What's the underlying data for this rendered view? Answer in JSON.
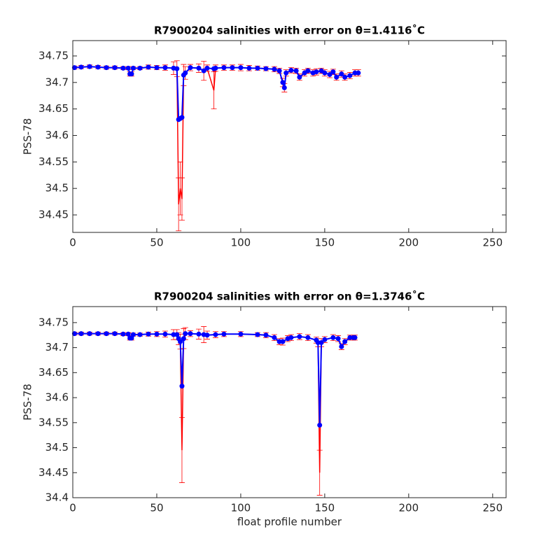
{
  "chart_data": [
    {
      "type": "line",
      "title": "R7900204 salinities with error on θ=1.4116˚C",
      "y_label": "PSS-78",
      "x": [
        1,
        5,
        10,
        15,
        20,
        25,
        30,
        33,
        34,
        35,
        36,
        40,
        45,
        50,
        55,
        60,
        62,
        63,
        64,
        65,
        66,
        67,
        70,
        75,
        78,
        80,
        84,
        85,
        90,
        95,
        100,
        105,
        110,
        115,
        120,
        123,
        125,
        126,
        127,
        130,
        133,
        135,
        138,
        140,
        143,
        145,
        148,
        150,
        153,
        155,
        157,
        160,
        162,
        165,
        168,
        170
      ],
      "series": [
        {
          "color": "#ff0000",
          "values": [
            34.728,
            34.729,
            34.73,
            34.729,
            34.728,
            34.728,
            34.727,
            34.727,
            34.716,
            34.716,
            34.727,
            34.727,
            34.729,
            34.728,
            34.728,
            34.727,
            34.726,
            34.47,
            34.5,
            34.48,
            34.714,
            34.718,
            34.728,
            34.727,
            34.722,
            34.727,
            34.685,
            34.727,
            34.728,
            34.728,
            34.728,
            34.727,
            34.727,
            34.726,
            34.725,
            34.722,
            34.7,
            34.69,
            34.718,
            34.723,
            34.722,
            34.71,
            34.718,
            34.722,
            34.718,
            34.72,
            34.722,
            34.718,
            34.715,
            34.72,
            34.71,
            34.716,
            34.71,
            34.713,
            34.718,
            34.718
          ],
          "errors": [
            0.003,
            0.003,
            0.003,
            0.003,
            0.003,
            0.003,
            0.003,
            0.003,
            0.004,
            0.004,
            0.003,
            0.003,
            0.004,
            0.004,
            0.005,
            0.012,
            0.015,
            0.05,
            0.05,
            0.04,
            0.02,
            0.012,
            0.006,
            0.008,
            0.018,
            0.006,
            0.035,
            0.006,
            0.005,
            0.005,
            0.006,
            0.005,
            0.004,
            0.004,
            0.005,
            0.005,
            0.008,
            0.008,
            0.006,
            0.005,
            0.005,
            0.006,
            0.006,
            0.005,
            0.006,
            0.006,
            0.005,
            0.006,
            0.006,
            0.005,
            0.006,
            0.006,
            0.006,
            0.006,
            0.006,
            0.006
          ]
        },
        {
          "color": "#0000ff",
          "values": [
            34.728,
            34.729,
            34.73,
            34.729,
            34.728,
            34.728,
            34.727,
            34.727,
            34.716,
            34.716,
            34.727,
            34.727,
            34.729,
            34.728,
            34.728,
            34.727,
            34.726,
            34.63,
            34.632,
            34.634,
            34.714,
            34.718,
            34.728,
            34.727,
            34.722,
            34.727,
            34.726,
            34.727,
            34.728,
            34.728,
            34.728,
            34.727,
            34.727,
            34.726,
            34.725,
            34.722,
            34.7,
            34.69,
            34.718,
            34.723,
            34.722,
            34.71,
            34.718,
            34.722,
            34.718,
            34.72,
            34.722,
            34.718,
            34.715,
            34.72,
            34.71,
            34.716,
            34.71,
            34.713,
            34.718,
            34.718
          ]
        }
      ],
      "xlim": [
        0,
        258
      ],
      "xticks": [
        0,
        50,
        100,
        150,
        200,
        250
      ],
      "ylim": [
        34.417,
        34.779
      ],
      "yticks": [
        34.45,
        34.5,
        34.55,
        34.6,
        34.65,
        34.7,
        34.75
      ]
    },
    {
      "type": "line",
      "title": "R7900204 salinities with error on θ=1.3746˚C",
      "y_label": "PSS-78",
      "x_label": "float profile number",
      "x": [
        1,
        5,
        10,
        15,
        20,
        25,
        30,
        33,
        34,
        35,
        36,
        40,
        45,
        50,
        55,
        60,
        62,
        63,
        64,
        65,
        66,
        67,
        70,
        75,
        78,
        80,
        85,
        90,
        100,
        110,
        115,
        120,
        123,
        125,
        128,
        130,
        135,
        140,
        145,
        146,
        147,
        148,
        150,
        155,
        158,
        160,
        162,
        165,
        167,
        168
      ],
      "series": [
        {
          "color": "#ff0000",
          "values": [
            34.728,
            34.728,
            34.728,
            34.728,
            34.728,
            34.728,
            34.727,
            34.727,
            34.719,
            34.719,
            34.726,
            34.726,
            34.727,
            34.727,
            34.727,
            34.726,
            34.726,
            34.718,
            34.712,
            34.495,
            34.718,
            34.728,
            34.728,
            34.727,
            34.726,
            34.725,
            34.726,
            34.727,
            34.727,
            34.726,
            34.725,
            34.72,
            34.712,
            34.712,
            34.718,
            34.72,
            34.722,
            34.72,
            34.715,
            34.71,
            34.45,
            34.71,
            34.716,
            34.72,
            34.718,
            34.702,
            34.712,
            34.72,
            34.72,
            34.72
          ],
          "errors": [
            0.003,
            0.003,
            0.003,
            0.003,
            0.003,
            0.003,
            0.003,
            0.003,
            0.004,
            0.004,
            0.003,
            0.003,
            0.004,
            0.005,
            0.006,
            0.01,
            0.01,
            0.012,
            0.015,
            0.065,
            0.02,
            0.012,
            0.006,
            0.01,
            0.016,
            0.008,
            0.006,
            0.005,
            0.005,
            0.004,
            0.005,
            0.006,
            0.006,
            0.007,
            0.006,
            0.006,
            0.006,
            0.006,
            0.006,
            0.008,
            0.045,
            0.008,
            0.006,
            0.006,
            0.006,
            0.006,
            0.006,
            0.005,
            0.005,
            0.005
          ]
        },
        {
          "color": "#0000ff",
          "values": [
            34.728,
            34.728,
            34.728,
            34.728,
            34.728,
            34.728,
            34.727,
            34.727,
            34.719,
            34.719,
            34.726,
            34.726,
            34.727,
            34.727,
            34.727,
            34.726,
            34.726,
            34.718,
            34.712,
            34.623,
            34.718,
            34.728,
            34.728,
            34.727,
            34.726,
            34.725,
            34.726,
            34.727,
            34.727,
            34.726,
            34.725,
            34.72,
            34.712,
            34.712,
            34.718,
            34.72,
            34.722,
            34.72,
            34.715,
            34.71,
            34.545,
            34.71,
            34.716,
            34.72,
            34.718,
            34.702,
            34.712,
            34.72,
            34.72,
            34.72
          ]
        }
      ],
      "xlim": [
        0,
        258
      ],
      "xticks": [
        0,
        50,
        100,
        150,
        200,
        250
      ],
      "ylim": [
        34.4,
        34.782
      ],
      "yticks": [
        34.4,
        34.45,
        34.5,
        34.55,
        34.6,
        34.65,
        34.7,
        34.75
      ]
    }
  ]
}
